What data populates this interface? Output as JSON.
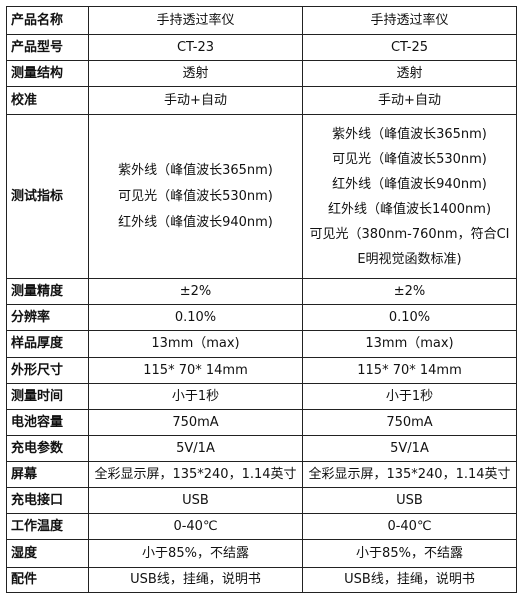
{
  "rows": [
    {
      "label": "产品名称",
      "a": [
        "手持透过率仪"
      ],
      "b": [
        "手持透过率仪"
      ]
    },
    {
      "label": "产品型号",
      "a": [
        "CT-23"
      ],
      "b": [
        "CT-25"
      ]
    },
    {
      "label": "测量结构",
      "a": [
        "透射"
      ],
      "b": [
        "透射"
      ]
    },
    {
      "label": "校准",
      "a": [
        "手动+自动"
      ],
      "b": [
        "手动+自动"
      ]
    },
    {
      "label": "测试指标",
      "a": [
        "紫外线（峰值波长365nm)",
        "可见光（峰值波长530nm)",
        "红外线（峰值波长940nm)"
      ],
      "b": [
        "紫外线（峰值波长365nm)",
        "可见光（峰值波长530nm)",
        "红外线（峰值波长940nm)",
        "红外线（峰值波长1400nm)",
        "可见光（380nm-760nm，符合CI",
        "E明视觉函数标准)"
      ]
    },
    {
      "label": "测量精度",
      "a": [
        "±2%"
      ],
      "b": [
        "±2%"
      ]
    },
    {
      "label": "分辨率",
      "a": [
        "0.10%"
      ],
      "b": [
        "0.10%"
      ]
    },
    {
      "label": "样品厚度",
      "a": [
        "13mm（max)"
      ],
      "b": [
        "13mm（max)"
      ]
    },
    {
      "label": "外形尺寸",
      "a": [
        "115* 70* 14mm"
      ],
      "b": [
        "115* 70* 14mm"
      ]
    },
    {
      "label": "测量时间",
      "a": [
        "小于1秒"
      ],
      "b": [
        "小于1秒"
      ]
    },
    {
      "label": "电池容量",
      "a": [
        "750mA"
      ],
      "b": [
        "750mA"
      ]
    },
    {
      "label": "充电参数",
      "a": [
        "5V/1A"
      ],
      "b": [
        "5V/1A"
      ]
    },
    {
      "label": "屏幕",
      "a": [
        "全彩显示屏，135*240，1.14英寸"
      ],
      "b": [
        "全彩显示屏，135*240，1.14英寸"
      ]
    },
    {
      "label": "充电接口",
      "a": [
        "USB"
      ],
      "b": [
        "USB"
      ]
    },
    {
      "label": "工作温度",
      "a": [
        "0-40℃"
      ],
      "b": [
        "0-40℃"
      ]
    },
    {
      "label": "湿度",
      "a": [
        "小于85%，不结露"
      ],
      "b": [
        "小于85%，不结露"
      ]
    },
    {
      "label": "配件",
      "a": [
        "USB线，挂绳，说明书"
      ],
      "b": [
        "USB线，挂绳，说明书"
      ]
    }
  ]
}
